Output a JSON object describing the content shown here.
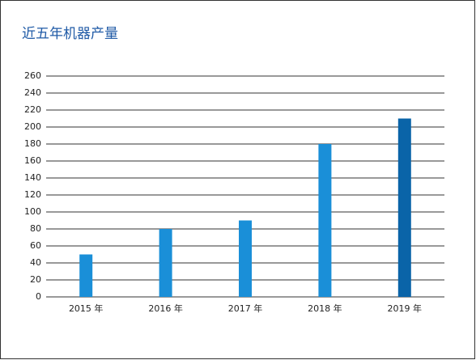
{
  "chart_data": {
    "type": "bar",
    "title": "近五年机器产量",
    "categories": [
      "2015 年",
      "2016 年",
      "2017 年",
      "2018 年",
      "2019 年"
    ],
    "values": [
      50,
      80,
      90,
      180,
      210
    ],
    "colors": [
      "#1a8fd8",
      "#1a8fd8",
      "#1a8fd8",
      "#1a8fd8",
      "#0a64a8"
    ],
    "ylim": [
      0,
      260
    ],
    "yticks": [
      0,
      20,
      40,
      60,
      80,
      100,
      120,
      140,
      160,
      180,
      200,
      220,
      240,
      260
    ],
    "grid": true
  }
}
